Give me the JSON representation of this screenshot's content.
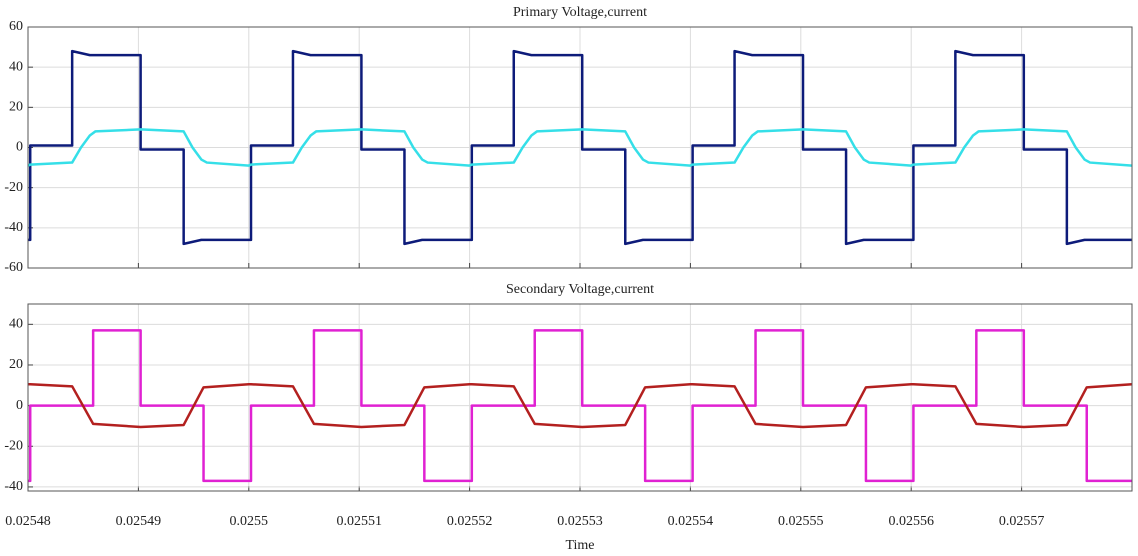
{
  "chart_data": [
    {
      "type": "line",
      "title": "Primary Voltage,current",
      "x": [
        0.02548,
        0.0254802,
        0.0254802,
        0.025484,
        0.025484,
        0.0254848,
        0.0254856,
        0.0254861,
        0.0254902,
        0.0254902,
        0.0254941,
        0.0254941,
        0.0254949,
        0.0254957,
        0.0254962,
        0.0255,
        0.0255002,
        0.0255002,
        0.025504,
        0.025504,
        0.0255048,
        0.0255056,
        0.0255061,
        0.0255102,
        0.0255102,
        0.0255141,
        0.0255141,
        0.0255149,
        0.0255157,
        0.0255162,
        0.02552,
        0.0255202,
        0.0255202,
        0.025524,
        0.025524,
        0.0255248,
        0.0255256,
        0.0255261,
        0.0255302,
        0.0255302,
        0.0255341,
        0.0255341,
        0.0255349,
        0.0255357,
        0.0255362,
        0.02554,
        0.0255402,
        0.0255402,
        0.025544,
        0.025544,
        0.0255448,
        0.0255456,
        0.0255461,
        0.0255502,
        0.0255502,
        0.0255541,
        0.0255541,
        0.0255549,
        0.0255557,
        0.0255562,
        0.02556,
        0.0255602,
        0.0255602,
        0.025564,
        0.025564,
        0.0255648,
        0.0255656,
        0.0255661,
        0.0255702,
        0.0255702,
        0.0255741,
        0.0255741,
        0.0255749,
        0.0255757,
        0.0255762,
        0.02558
      ],
      "series": [
        {
          "color": "#0d1b7a",
          "values": [
            -46,
            -46,
            1,
            1,
            48,
            47,
            46,
            46,
            46,
            -1,
            -1,
            -48,
            -47,
            -46,
            -46,
            -46,
            -46,
            1,
            1,
            48,
            47,
            46,
            46,
            46,
            -1,
            -1,
            -48,
            -47,
            -46,
            -46,
            -46,
            -46,
            1,
            1,
            48,
            47,
            46,
            46,
            46,
            -1,
            -1,
            -48,
            -47,
            -46,
            -46,
            -46,
            -46,
            1,
            1,
            48,
            47,
            46,
            46,
            46,
            -1,
            -1,
            -48,
            -47,
            -46,
            -46,
            -46,
            -46,
            1,
            1,
            48,
            47,
            46,
            46,
            46,
            -1,
            -1,
            -48,
            -47,
            -46,
            -46,
            -46
          ]
        },
        {
          "color": "#35dfe8",
          "values": [
            -9,
            -8.5,
            -8.5,
            -7.5,
            -7.5,
            0,
            6,
            8,
            9,
            9,
            8,
            8,
            0,
            -6,
            -7.5,
            -9,
            -8.5,
            -8.5,
            -7.5,
            -7.5,
            0,
            6,
            8,
            9,
            9,
            8,
            8,
            0,
            -6,
            -7.5,
            -9,
            -8.5,
            -8.5,
            -7.5,
            -7.5,
            0,
            6,
            8,
            9,
            9,
            8,
            8,
            0,
            -6,
            -7.5,
            -9,
            -8.5,
            -8.5,
            -7.5,
            -7.5,
            0,
            6,
            8,
            9,
            9,
            8,
            8,
            0,
            -6,
            -7.5,
            -9,
            -8.5,
            -8.5,
            -7.5,
            -7.5,
            0,
            6,
            8,
            9,
            9,
            8,
            8,
            0,
            -6,
            -7.5,
            -9
          ]
        }
      ],
      "xlim": [
        0.02548,
        0.02558
      ],
      "xticks": [
        0.02548,
        0.02549,
        0.0255,
        0.02551,
        0.02552,
        0.02553,
        0.02554,
        0.02555,
        0.02556,
        0.02557
      ],
      "show_xtick_labels": false,
      "ylim": [
        -60,
        60
      ],
      "yticks": [
        -60,
        -40,
        -20,
        0,
        20,
        40,
        60
      ],
      "grid": true
    },
    {
      "type": "line",
      "title": "Secondary Voltage,current",
      "xlabel": "Time",
      "x": [
        0.02548,
        0.0254802,
        0.0254802,
        0.025484,
        0.0254859,
        0.0254859,
        0.0254902,
        0.0254902,
        0.0254941,
        0.0254959,
        0.0254959,
        0.0255,
        0.0255002,
        0.0255002,
        0.025504,
        0.0255059,
        0.0255059,
        0.0255102,
        0.0255102,
        0.0255141,
        0.0255159,
        0.0255159,
        0.02552,
        0.0255202,
        0.0255202,
        0.025524,
        0.0255259,
        0.0255259,
        0.0255302,
        0.0255302,
        0.0255341,
        0.0255359,
        0.0255359,
        0.02554,
        0.0255402,
        0.0255402,
        0.025544,
        0.0255459,
        0.0255459,
        0.0255502,
        0.0255502,
        0.0255541,
        0.0255559,
        0.0255559,
        0.02556,
        0.0255602,
        0.0255602,
        0.025564,
        0.0255659,
        0.0255659,
        0.0255702,
        0.0255702,
        0.0255741,
        0.0255759,
        0.0255759,
        0.02558
      ],
      "series": [
        {
          "color": "#e021d2",
          "values": [
            -37,
            -37,
            0,
            0,
            0,
            37,
            37,
            0,
            0,
            0,
            -37,
            -37,
            -37,
            0,
            0,
            0,
            37,
            37,
            0,
            0,
            0,
            -37,
            -37,
            -37,
            0,
            0,
            0,
            37,
            37,
            0,
            0,
            0,
            -37,
            -37,
            -37,
            0,
            0,
            0,
            37,
            37,
            0,
            0,
            0,
            -37,
            -37,
            -37,
            0,
            0,
            0,
            37,
            37,
            0,
            0,
            0,
            -37,
            -37
          ]
        },
        {
          "color": "#b3201f",
          "values": [
            10.5,
            10.5,
            10.5,
            9.5,
            -9,
            -9,
            -10.5,
            -10.5,
            -9.5,
            9,
            9,
            10.5,
            10.5,
            10.5,
            9.5,
            -9,
            -9,
            -10.5,
            -10.5,
            -9.5,
            9,
            9,
            10.5,
            10.5,
            10.5,
            9.5,
            -9,
            -9,
            -10.5,
            -10.5,
            -9.5,
            9,
            9,
            10.5,
            10.5,
            10.5,
            9.5,
            -9,
            -9,
            -10.5,
            -10.5,
            -9.5,
            9,
            9,
            10.5,
            10.5,
            10.5,
            9.5,
            -9,
            -9,
            -10.5,
            -10.5,
            -9.5,
            9,
            9,
            10.5
          ]
        }
      ],
      "xlim": [
        0.02548,
        0.02558
      ],
      "xticks": [
        0.02548,
        0.02549,
        0.0255,
        0.02551,
        0.02552,
        0.02553,
        0.02554,
        0.02555,
        0.02556,
        0.02557
      ],
      "show_xtick_labels": true,
      "ylim": [
        -42,
        50
      ],
      "yticks": [
        -40,
        -20,
        0,
        20,
        40
      ],
      "grid": true
    }
  ]
}
